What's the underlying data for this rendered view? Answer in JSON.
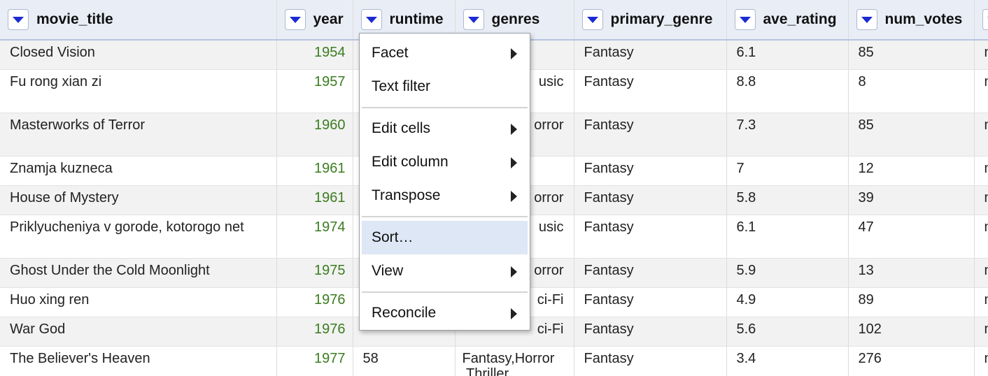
{
  "columns": [
    {
      "label": "movie_title"
    },
    {
      "label": "year"
    },
    {
      "label": "runtime"
    },
    {
      "label": "genres"
    },
    {
      "label": "primary_genre"
    },
    {
      "label": "ave_rating"
    },
    {
      "label": "num_votes"
    },
    {
      "label": ""
    }
  ],
  "rows": [
    {
      "movie_title": "Closed Vision",
      "year": "1954",
      "runtime": "",
      "genres": "",
      "primary_genre": "Fantasy",
      "ave_rating": "6.1",
      "num_votes": "85",
      "extra": "n"
    },
    {
      "movie_title": "Fu rong xian zi",
      "year": "1957",
      "runtime": "",
      "genres": "usic",
      "primary_genre": "Fantasy",
      "ave_rating": "8.8",
      "num_votes": "8",
      "extra": "n"
    },
    {
      "movie_title": "Masterworks of Terror",
      "year": "1960",
      "runtime": "",
      "genres": "orror",
      "primary_genre": "Fantasy",
      "ave_rating": "7.3",
      "num_votes": "85",
      "extra": "n"
    },
    {
      "movie_title": "Znamja kuzneca",
      "year": "1961",
      "runtime": "",
      "genres": "",
      "primary_genre": "Fantasy",
      "ave_rating": "7",
      "num_votes": "12",
      "extra": "n"
    },
    {
      "movie_title": "House of Mystery",
      "year": "1961",
      "runtime": "",
      "genres": "orror",
      "primary_genre": "Fantasy",
      "ave_rating": "5.8",
      "num_votes": "39",
      "extra": "n"
    },
    {
      "movie_title": "Priklyucheniya v gorode, kotorogo net",
      "year": "1974",
      "runtime": "",
      "genres": "usic",
      "primary_genre": "Fantasy",
      "ave_rating": "6.1",
      "num_votes": "47",
      "extra": "n"
    },
    {
      "movie_title": "Ghost Under the Cold Moonlight",
      "year": "1975",
      "runtime": "",
      "genres": "orror",
      "primary_genre": "Fantasy",
      "ave_rating": "5.9",
      "num_votes": "13",
      "extra": "n"
    },
    {
      "movie_title": "Huo xing ren",
      "year": "1976",
      "runtime": "",
      "genres": "ci-Fi",
      "primary_genre": "Fantasy",
      "ave_rating": "4.9",
      "num_votes": "89",
      "extra": "n"
    },
    {
      "movie_title": "War God",
      "year": "1976",
      "runtime": "",
      "genres": "ci-Fi",
      "primary_genre": "Fantasy",
      "ave_rating": "5.6",
      "num_votes": "102",
      "extra": "n"
    },
    {
      "movie_title": "The Believer's Heaven",
      "year": "1977",
      "runtime": "58",
      "genres": "Fantasy,Horror\n,Thriller",
      "primary_genre": "Fantasy",
      "ave_rating": "3.4",
      "num_votes": "276",
      "extra": "n"
    }
  ],
  "menu": {
    "facet": "Facet",
    "text_filter": "Text filter",
    "edit_cells": "Edit cells",
    "edit_column": "Edit column",
    "transpose": "Transpose",
    "sort": "Sort…",
    "view": "View",
    "reconcile": "Reconcile"
  },
  "icons": {
    "column_dropdown": "triangle-down-icon",
    "submenu": "triangle-right-icon"
  },
  "colors": {
    "header_bg": "#e9edf6",
    "dropdown_arrow": "#1c2bd1",
    "year_text": "#3b7d1f",
    "row_alt": "#f2f2f2",
    "menu_highlight": "#dde7f5"
  }
}
